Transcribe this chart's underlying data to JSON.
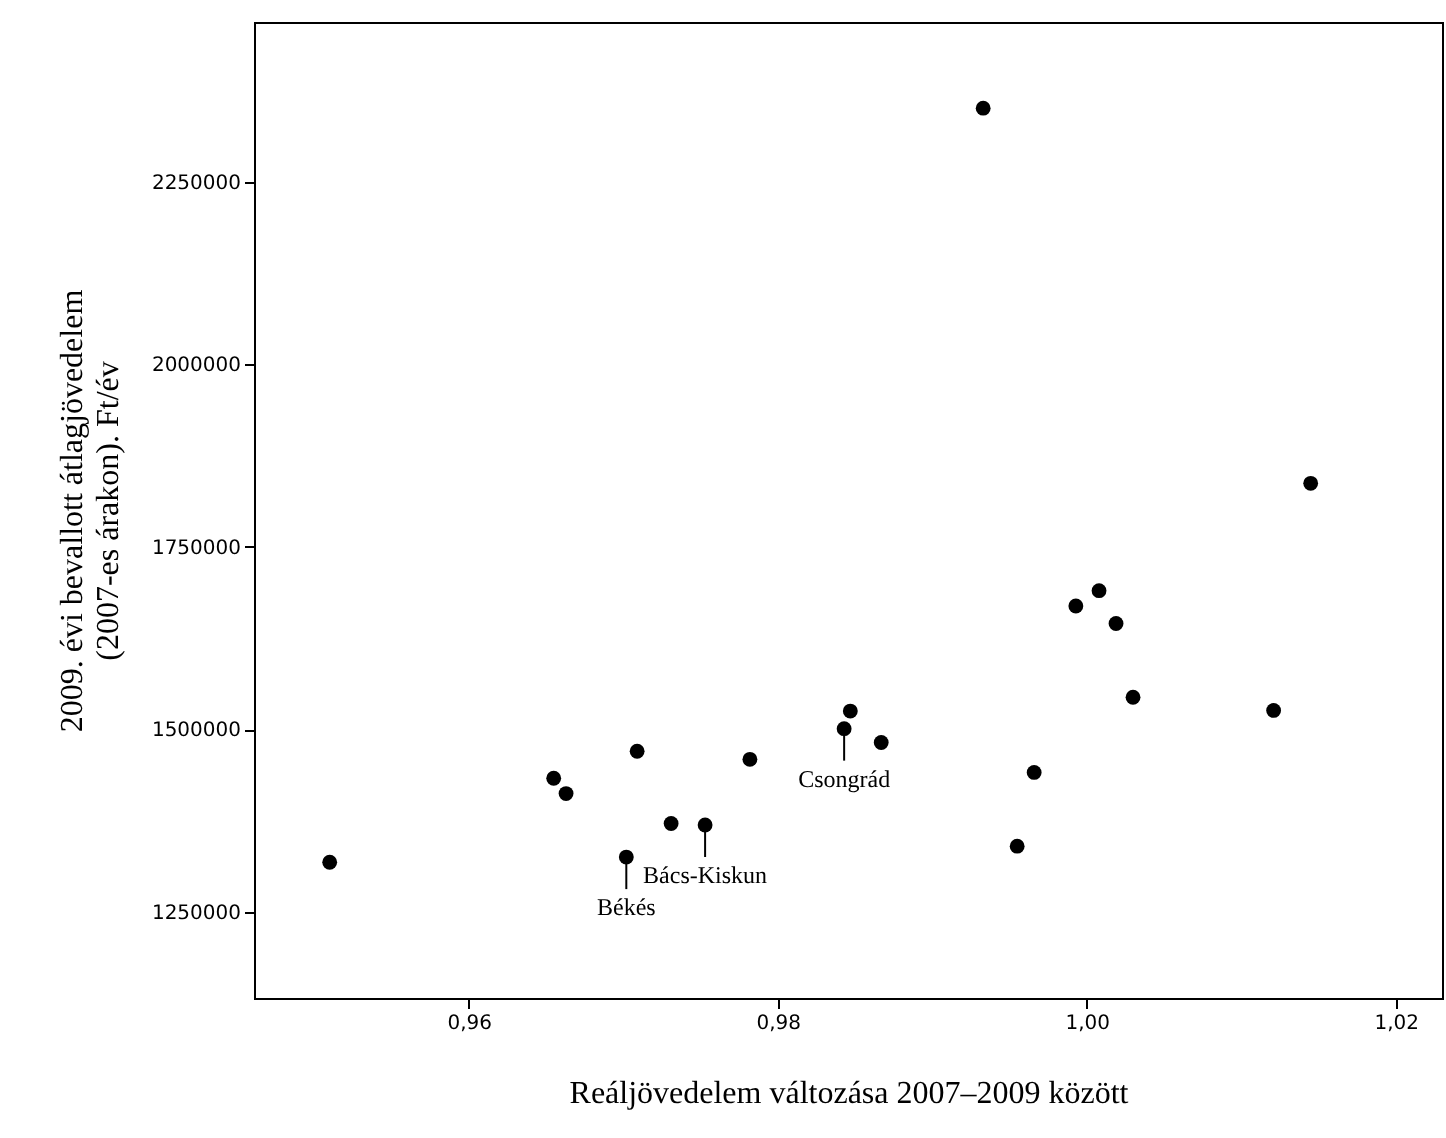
{
  "chart_data": {
    "type": "scatter",
    "xlabel": "Reáljövedelem változása 2007–2009 között",
    "ylabel": "2009. évi bevallott átlagjövedelem\n(2007-es árakon). Ft/év",
    "x": [
      0.951,
      0.9655,
      0.9663,
      0.9709,
      0.9702,
      0.9731,
      0.9753,
      0.9782,
      0.9847,
      0.9843,
      0.9867,
      0.9966,
      0.9955,
      0.9993,
      1.0008,
      1.0019,
      1.003,
      1.0121,
      0.9933,
      1.0145
    ],
    "series": [
      {
        "color": "#000000",
        "values": [
          1318000,
          1433000,
          1412000,
          1470000,
          1325000,
          1371000,
          1369000,
          1459000,
          1525000,
          1501000,
          1482000,
          1441000,
          1340000,
          1669000,
          1690000,
          1645000,
          1544000,
          1526000,
          2351000,
          1837000
        ]
      }
    ],
    "xlim": [
      0.9461,
      1.023
    ],
    "ylim": [
      1132000,
      2469000
    ],
    "xticks": [
      {
        "value": 0.96,
        "label": "0,96"
      },
      {
        "value": 0.98,
        "label": "0,98"
      },
      {
        "value": 1.0,
        "label": "1,00"
      },
      {
        "value": 1.02,
        "label": "1,02"
      }
    ],
    "yticks": [
      1250000,
      1500000,
      1750000,
      2000000,
      2250000
    ],
    "marker": "circle",
    "grid": false,
    "annotations": [
      {
        "text": "Békés",
        "x": 0.9702,
        "y": 1325000
      },
      {
        "text": "Bács-Kiskun",
        "x": 0.9753,
        "y": 1369000
      },
      {
        "text": "Csongrád",
        "x": 0.9843,
        "y": 1501000
      }
    ]
  }
}
